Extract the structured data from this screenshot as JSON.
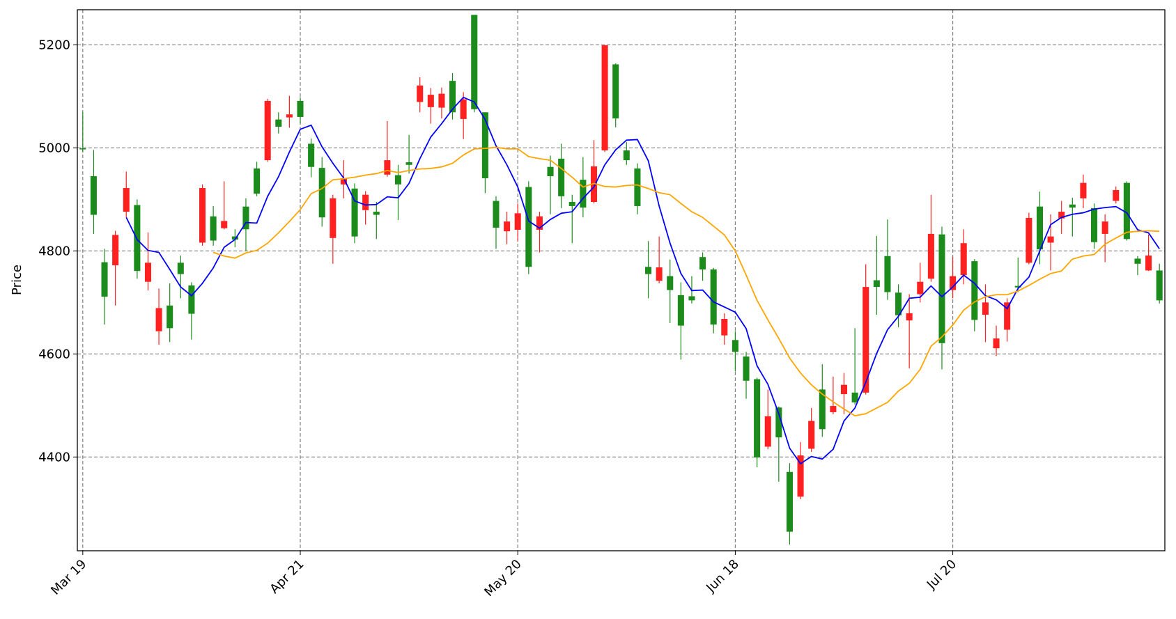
{
  "chart_data": {
    "type": "candlestick",
    "ylabel": "Price",
    "categories": [
      "Mar 19",
      null,
      null,
      null,
      null,
      null,
      null,
      null,
      null,
      null,
      null,
      null,
      null,
      null,
      null,
      null,
      null,
      null,
      null,
      null,
      "Apr 21",
      null,
      null,
      null,
      null,
      null,
      null,
      null,
      null,
      null,
      null,
      null,
      null,
      null,
      null,
      null,
      null,
      null,
      null,
      null,
      "May 20",
      null,
      null,
      null,
      null,
      null,
      null,
      null,
      null,
      null,
      null,
      null,
      null,
      null,
      null,
      null,
      null,
      null,
      null,
      null,
      "Jun 18",
      null,
      null,
      null,
      null,
      null,
      null,
      null,
      null,
      null,
      null,
      null,
      null,
      null,
      null,
      null,
      null,
      null,
      null,
      null,
      "Jul 20",
      null,
      null,
      null,
      null,
      null,
      null,
      null,
      null,
      null,
      null,
      null,
      null,
      null,
      null,
      null,
      null,
      null,
      null,
      null
    ],
    "open": [
      4997,
      4870,
      4711,
      4831,
      4922,
      4761,
      4777,
      4689,
      4650,
      4755,
      4678,
      4922,
      4820,
      4858,
      4822,
      4842,
      4911,
      5091,
      5041,
      5065,
      5060,
      4963,
      4865,
      4902,
      4941,
      4828,
      4909,
      4870,
      4976,
      4929,
      4967,
      5121,
      5103,
      5105,
      5069,
      5094,
      5075,
      4941,
      4845,
      4857,
      4873,
      4769,
      4867,
      4945,
      4906,
      4887,
      4884,
      4964,
      5199,
      5057,
      4976,
      4887,
      4755,
      4768,
      4724,
      4655,
      4704,
      4764,
      4657,
      4668,
      4604,
      4548,
      4399,
      4479,
      4438,
      4255,
      4403,
      4470,
      4454,
      4499,
      4540,
      4506,
      4730,
      4730,
      4720,
      4675,
      4679,
      4740,
      4833,
      4621,
      4751,
      4815,
      4666,
      4700,
      4630,
      4700,
      4729,
      4864,
      4803,
      4828,
      4876,
      4884,
      4932,
      4817,
      4857,
      4918,
      4823,
      4775,
      4791,
      4704
    ],
    "high": [
      5069,
      4996,
      4804,
      4839,
      4954,
      4900,
      4836,
      4727,
      4737,
      4791,
      4739,
      4929,
      4887,
      4935,
      4842,
      4902,
      4973,
      5095,
      5069,
      5101,
      5098,
      5018,
      4982,
      4909,
      4976,
      4931,
      4916,
      4895,
      5052,
      4967,
      5025,
      5137,
      5116,
      5117,
      5145,
      5108,
      5258,
      5069,
      4906,
      4876,
      4892,
      4935,
      4876,
      4985,
      5008,
      4909,
      4982,
      5015,
      5200,
      5164,
      5011,
      4970,
      4819,
      4828,
      4783,
      4739,
      4751,
      4797,
      4767,
      4679,
      4644,
      4604,
      4554,
      4531,
      4498,
      4388,
      4429,
      4495,
      4580,
      4556,
      4563,
      4650,
      4774,
      4829,
      4861,
      4735,
      4716,
      4777,
      4909,
      4847,
      4788,
      4842,
      4784,
      4735,
      4655,
      4708,
      4787,
      4874,
      4915,
      4871,
      4897,
      4903,
      4948,
      4892,
      4871,
      4925,
      4935,
      4790,
      4832,
      4775
    ],
    "low": [
      4992,
      4833,
      4657,
      4694,
      4865,
      4746,
      4723,
      4618,
      4623,
      4708,
      4628,
      4810,
      4810,
      4842,
      4807,
      4799,
      4906,
      4973,
      5028,
      5039,
      5047,
      4943,
      4847,
      4775,
      4902,
      4815,
      4851,
      4823,
      4944,
      4860,
      4950,
      5069,
      5047,
      5057,
      5055,
      5017,
      5069,
      4912,
      4804,
      4813,
      4819,
      4755,
      4797,
      4871,
      4883,
      4815,
      4865,
      4892,
      4992,
      5040,
      4967,
      4871,
      4708,
      4737,
      4660,
      4589,
      4698,
      4742,
      4640,
      4618,
      4566,
      4513,
      4380,
      4415,
      4352,
      4230,
      4318,
      4410,
      4439,
      4483,
      4483,
      4502,
      4521,
      4676,
      4705,
      4652,
      4572,
      4700,
      4740,
      4570,
      4708,
      4735,
      4644,
      4623,
      4596,
      4624,
      4720,
      4774,
      4774,
      4762,
      4833,
      4828,
      4883,
      4804,
      4778,
      4892,
      4820,
      4753,
      4761,
      4698
    ],
    "close": [
      4999,
      4945,
      4778,
      4772,
      4876,
      4889,
      4740,
      4644,
      4694,
      4777,
      4733,
      4816,
      4867,
      4844,
      4828,
      4886,
      4960,
      4976,
      5055,
      5059,
      5091,
      5008,
      4961,
      4825,
      4929,
      4921,
      4879,
      4876,
      4948,
      4947,
      4972,
      5089,
      5079,
      5078,
      5130,
      5056,
      5258,
      5069,
      4897,
      4838,
      4841,
      4924,
      4841,
      4963,
      4979,
      4895,
      4938,
      4895,
      4995,
      5162,
      4995,
      4960,
      4769,
      4742,
      4751,
      4714,
      4712,
      4788,
      4764,
      4636,
      4627,
      4595,
      4551,
      4420,
      4496,
      4371,
      4323,
      4416,
      4531,
      4487,
      4522,
      4525,
      4525,
      4743,
      4790,
      4719,
      4665,
      4716,
      4746,
      4832,
      4724,
      4753,
      4780,
      4676,
      4611,
      4647,
      4732,
      4777,
      4886,
      4816,
      4863,
      4890,
      4902,
      4883,
      4833,
      4897,
      4932,
      4785,
      4762,
      4762
    ],
    "up_color": "#1b8c1b",
    "down_color": "#ff2020",
    "moving_averages": [
      {
        "color": "#0000ff",
        "values": [
          null,
          null,
          null,
          null,
          4865,
          4822,
          4801,
          4797,
          4764,
          4730,
          4713,
          4737,
          4767,
          4807,
          4822,
          4855,
          4854,
          4906,
          4944,
          4992,
          5036,
          5044,
          5002,
          4970,
          4941,
          4897,
          4889,
          4890,
          4905,
          4903,
          4931,
          4979,
          5021,
          5047,
          5075,
          5098,
          5089,
          5055,
          5004,
          4967,
          4924,
          4858,
          4844,
          4861,
          4873,
          4876,
          4902,
          4924,
          4967,
          4996,
          5015,
          5016,
          4975,
          4887,
          4815,
          4756,
          4723,
          4724,
          4701,
          4691,
          4681,
          4649,
          4577,
          4541,
          4484,
          4417,
          4387,
          4401,
          4396,
          4415,
          4470,
          4495,
          4545,
          4601,
          4647,
          4673,
          4708,
          4710,
          4732,
          4711,
          4730,
          4753,
          4737,
          4713,
          4705,
          4688,
          4727,
          4749,
          4800,
          4851,
          4865,
          4871,
          4874,
          4881,
          4884,
          4886,
          4874,
          4841,
          4835,
          4804
        ]
      },
      {
        "color": "#ffa500",
        "values": [
          null,
          null,
          null,
          null,
          null,
          null,
          null,
          null,
          null,
          null,
          null,
          null,
          4797,
          4790,
          4786,
          4796,
          4801,
          4815,
          4835,
          4857,
          4880,
          4911,
          4921,
          4938,
          4940,
          4943,
          4947,
          4950,
          4956,
          4952,
          4956,
          4959,
          4960,
          4963,
          4970,
          4986,
          4998,
          4999,
          5001,
          4998,
          4998,
          4983,
          4979,
          4976,
          4960,
          4943,
          4924,
          4931,
          4925,
          4924,
          4927,
          4928,
          4921,
          4913,
          4909,
          4892,
          4876,
          4865,
          4848,
          4831,
          4800,
          4753,
          4704,
          4666,
          4630,
          4592,
          4563,
          4540,
          4522,
          4507,
          4493,
          4480,
          4484,
          4495,
          4506,
          4528,
          4543,
          4570,
          4615,
          4633,
          4656,
          4685,
          4701,
          4711,
          4715,
          4715,
          4722,
          4733,
          4745,
          4756,
          4761,
          4784,
          4790,
          4793,
          4813,
          4825,
          4836,
          4838,
          4839,
          4838
        ]
      }
    ],
    "ylim": [
      4218,
      5268
    ],
    "yticks": [
      4400,
      4600,
      4800,
      5000,
      5200
    ],
    "grid": true
  }
}
